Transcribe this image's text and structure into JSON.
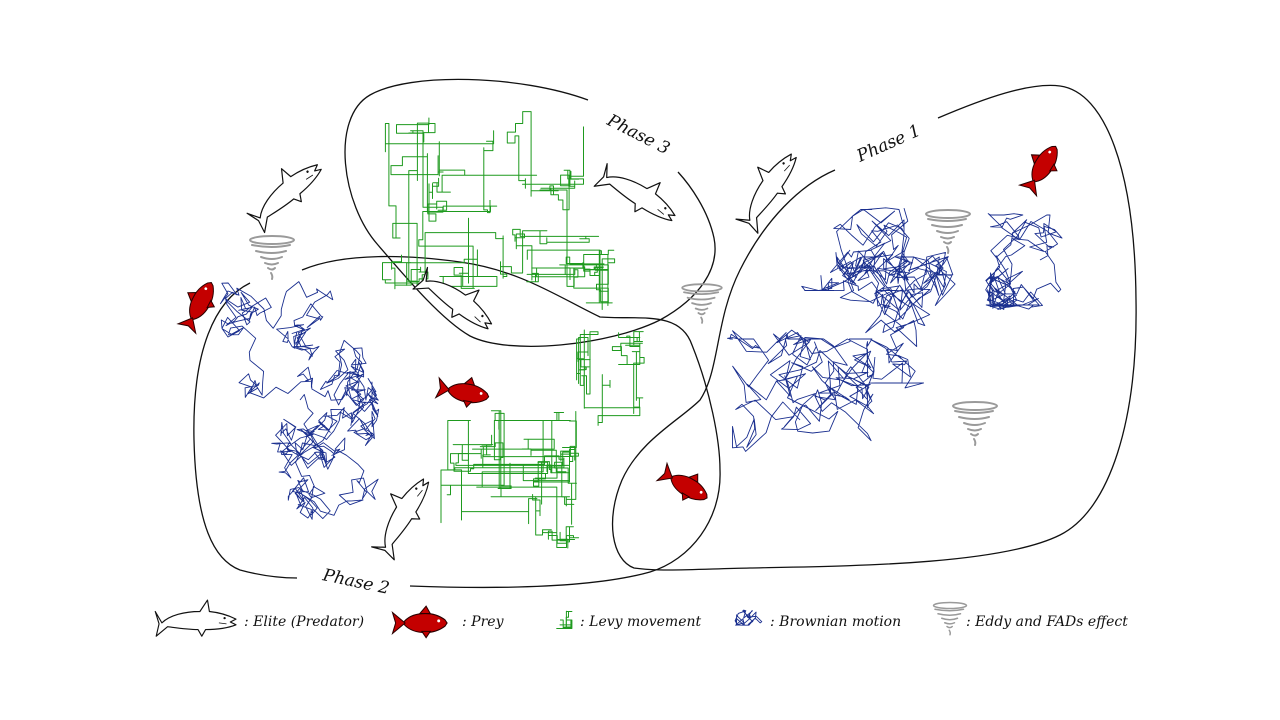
{
  "phases": [
    {
      "label": "Phase 1"
    },
    {
      "label": "Phase 2"
    },
    {
      "label": "Phase 3"
    }
  ],
  "legend": [
    {
      "key": "elite",
      "text": ": Elite (Predator)"
    },
    {
      "key": "prey",
      "text": ": Prey"
    },
    {
      "key": "levy",
      "text": ": Levy movement"
    },
    {
      "key": "brownian",
      "text": ": Brownian motion"
    },
    {
      "key": "eddy",
      "text": ": Eddy and FADs effect"
    }
  ],
  "colors": {
    "levy": "#1e9a1e",
    "brownian": "#1a2f8f",
    "prey": "#c40000",
    "eddy": "#9a9a9a",
    "outline": "#111111"
  },
  "icons": {
    "elite": "shark-icon",
    "prey": "red-fish-icon",
    "levy": "levy-path-icon",
    "brownian": "brownian-path-icon",
    "eddy": "tornado-icon"
  }
}
